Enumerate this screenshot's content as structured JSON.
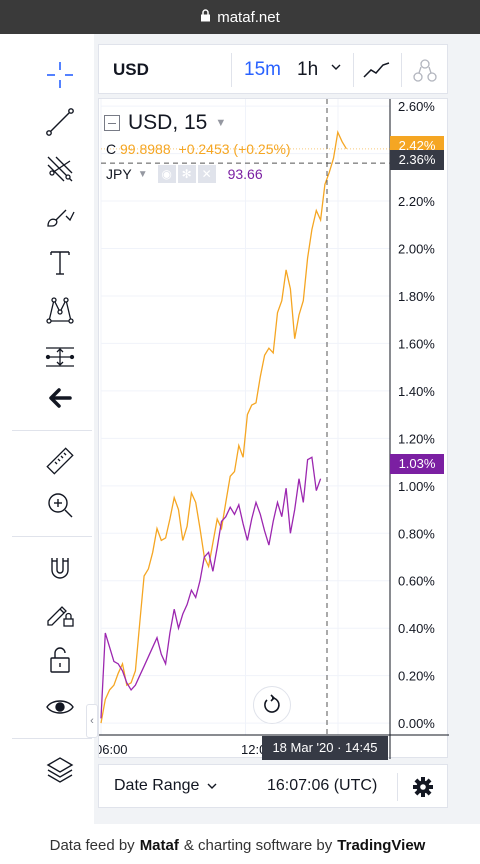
{
  "browser": {
    "url": "mataf.net"
  },
  "header": {
    "symbol": "USD",
    "intervals": [
      "15m",
      "1h"
    ]
  },
  "legend": {
    "symbol": "USD, 15",
    "c_label": "C",
    "c_value": "99.8988",
    "c_change": "+0.2453 (+0.25%)",
    "compare_symbol": "JPY",
    "compare_value": "93.66"
  },
  "price_labels": {
    "main": "2.42%",
    "crosshair": "2.36%",
    "compare": "1.03%"
  },
  "time_axis": {
    "ticks": [
      "06:00",
      "12:00"
    ],
    "crosshair_label": "18 Mar '20 · 14:45"
  },
  "bottom": {
    "date_range": "Date Range",
    "clock": "16:07:06 (UTC)"
  },
  "footer": {
    "prefix": "Data feed by",
    "mataf": "Mataf",
    "middle": "& charting software by",
    "tv": "TradingView"
  },
  "colors": {
    "usd": "#f5a623",
    "jpy": "#9c27b0",
    "accent": "#2962ff",
    "crosshair_bg": "#363a45",
    "jpy_label_bg": "#7b1fa2"
  },
  "icons": [
    "crosshair-icon",
    "trend-line-icon",
    "pitchfork-icon",
    "brush-icon",
    "text-icon",
    "pattern-icon",
    "measure-icon",
    "back-arrow-icon",
    "ruler-icon",
    "zoom-in-icon",
    "magnet-icon",
    "lock-pencil-icon",
    "unlock-icon",
    "eye-icon",
    "layers-icon",
    "line-chart-icon",
    "indicators-icon",
    "reset-icon",
    "gear-icon"
  ],
  "chart_data": {
    "type": "line",
    "ylim": [
      -0.05,
      2.63
    ],
    "y_ticks": [
      "2.60%",
      "2.40%",
      "2.20%",
      "2.00%",
      "1.80%",
      "1.60%",
      "1.40%",
      "1.20%",
      "1.00%",
      "0.80%",
      "0.60%",
      "0.40%",
      "0.20%",
      "0.00%"
    ],
    "y_tick_values": [
      2.6,
      2.4,
      2.2,
      2.0,
      1.8,
      1.6,
      1.4,
      1.2,
      1.0,
      0.8,
      0.6,
      0.4,
      0.2,
      0.0
    ],
    "x_count": 60,
    "series": [
      {
        "name": "USD",
        "values": [
          0.0,
          0.1,
          0.14,
          0.16,
          0.21,
          0.25,
          0.16,
          0.17,
          0.22,
          0.42,
          0.62,
          0.65,
          0.72,
          0.82,
          0.77,
          0.78,
          0.86,
          0.95,
          0.9,
          0.77,
          0.83,
          0.97,
          0.93,
          0.82,
          0.7,
          0.66,
          0.76,
          0.86,
          0.82,
          0.93,
          1.04,
          1.06,
          1.17,
          1.12,
          1.3,
          1.34,
          1.35,
          1.46,
          1.55,
          1.58,
          1.56,
          1.73,
          1.78,
          1.91,
          1.83,
          1.62,
          1.72,
          1.78,
          1.96,
          2.08,
          2.16,
          2.12,
          2.27,
          2.32,
          2.38,
          2.49,
          2.45,
          2.42
        ]
      },
      {
        "name": "JPY",
        "values": [
          0.02,
          0.38,
          0.32,
          0.26,
          0.25,
          0.22,
          0.17,
          0.14,
          0.16,
          0.2,
          0.24,
          0.28,
          0.32,
          0.36,
          0.29,
          0.25,
          0.38,
          0.48,
          0.4,
          0.46,
          0.5,
          0.56,
          0.53,
          0.6,
          0.7,
          0.72,
          0.64,
          0.74,
          0.85,
          0.87,
          0.91,
          0.88,
          0.92,
          0.84,
          0.77,
          0.86,
          0.93,
          0.88,
          0.81,
          0.75,
          0.85,
          0.93,
          0.87,
          0.99,
          0.8,
          0.9,
          1.03,
          0.93,
          1.11,
          1.12,
          0.98,
          1.03
        ]
      }
    ]
  }
}
